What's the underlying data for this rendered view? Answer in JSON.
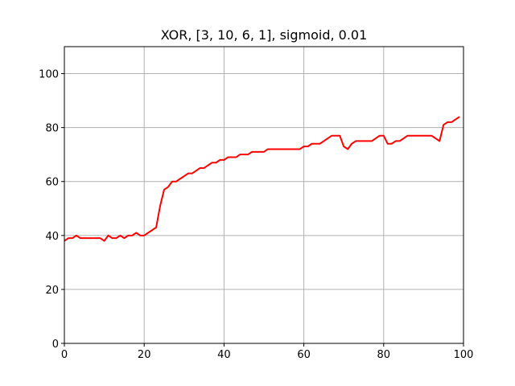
{
  "chart_data": {
    "type": "line",
    "title": "XOR, [3, 10, 6, 1], sigmoid, 0.01",
    "xlabel": "",
    "ylabel": "",
    "xlim": [
      0,
      100
    ],
    "ylim": [
      0,
      110
    ],
    "xticks": [
      0,
      20,
      40,
      60,
      80,
      100
    ],
    "yticks": [
      0,
      20,
      40,
      60,
      80,
      100
    ],
    "grid": true,
    "series": [
      {
        "color": "#ff0000",
        "x": [
          0,
          1,
          2,
          3,
          4,
          5,
          6,
          7,
          8,
          9,
          10,
          11,
          12,
          13,
          14,
          15,
          16,
          17,
          18,
          19,
          20,
          21,
          22,
          23,
          24,
          25,
          26,
          27,
          28,
          29,
          30,
          31,
          32,
          33,
          34,
          35,
          36,
          37,
          38,
          39,
          40,
          41,
          42,
          43,
          44,
          45,
          46,
          47,
          48,
          49,
          50,
          51,
          52,
          53,
          54,
          55,
          56,
          57,
          58,
          59,
          60,
          61,
          62,
          63,
          64,
          65,
          66,
          67,
          68,
          69,
          70,
          71,
          72,
          73,
          74,
          75,
          76,
          77,
          78,
          79,
          80,
          81,
          82,
          83,
          84,
          85,
          86,
          87,
          88,
          89,
          90,
          91,
          92,
          93,
          94,
          95,
          96,
          97,
          98,
          99
        ],
        "y": [
          38,
          39,
          39,
          40,
          39,
          39,
          39,
          39,
          39,
          39,
          38,
          40,
          39,
          39,
          40,
          39,
          40,
          40,
          41,
          40,
          40,
          41,
          42,
          43,
          51,
          57,
          58,
          60,
          60,
          61,
          62,
          63,
          63,
          64,
          65,
          65,
          66,
          67,
          67,
          68,
          68,
          69,
          69,
          69,
          70,
          70,
          70,
          71,
          71,
          71,
          71,
          72,
          72,
          72,
          72,
          72,
          72,
          72,
          72,
          72,
          73,
          73,
          74,
          74,
          74,
          75,
          76,
          77,
          77,
          77,
          73,
          72,
          74,
          75,
          75,
          75,
          75,
          75,
          76,
          77,
          77,
          74,
          74,
          75,
          75,
          76,
          77,
          77,
          77,
          77,
          77,
          77,
          77,
          76,
          75,
          81,
          82,
          82,
          83,
          84
        ]
      }
    ]
  }
}
